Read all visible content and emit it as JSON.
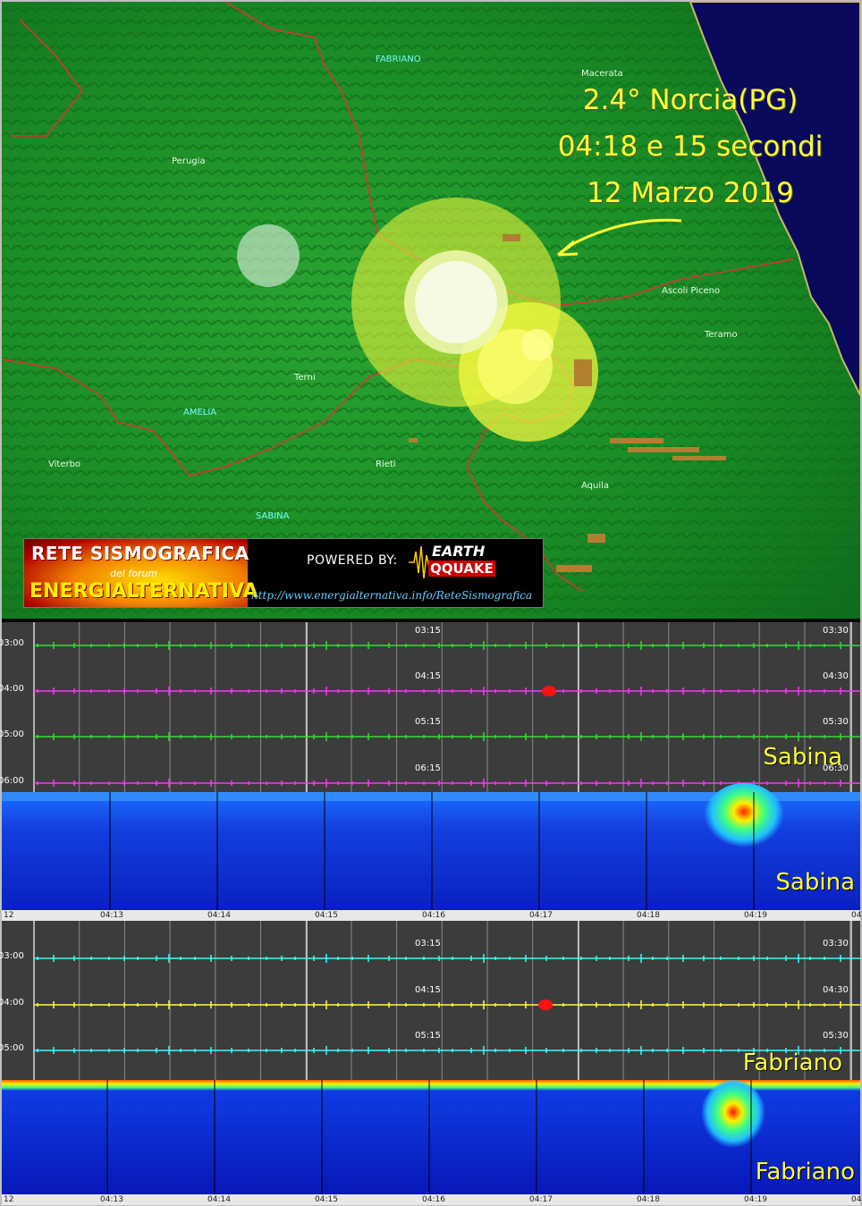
{
  "map": {
    "cities": [
      {
        "name": "FABRIANO",
        "style": "cyan"
      },
      {
        "name": "Macerata",
        "style": "white"
      },
      {
        "name": "Perugia",
        "style": "white"
      },
      {
        "name": "Ascoli Piceno",
        "style": "white"
      },
      {
        "name": "Teramo",
        "style": "white"
      },
      {
        "name": "Terni",
        "style": "white"
      },
      {
        "name": "AMELIA",
        "style": "cyan"
      },
      {
        "name": "Viterbo",
        "style": "white"
      },
      {
        "name": "Rieti",
        "style": "white"
      },
      {
        "name": "Aquila",
        "style": "white"
      },
      {
        "name": "SABINA",
        "style": "cyan"
      }
    ],
    "caption": {
      "magnitude_location": "2.4° Norcia(PG)",
      "time": "04:18 e 15 secondi",
      "date": "12 Marzo 2019"
    }
  },
  "banner": {
    "title1": "RETE SISMOGRAFICA",
    "subtitle": "del forum",
    "title2": "ENERGIALTERNATIVA",
    "powered_by": "POWERED BY:",
    "logo_line1": "EARTH",
    "logo_line2": "QQUAKE",
    "url": "http://www.energialternativa.info/ReteSismografica"
  },
  "sabina_heli": {
    "station": "Sabina",
    "row_labels": [
      "03:00",
      "04:00",
      "05:00",
      "06:00"
    ],
    "mid_labels": [
      "03:15",
      "04:15",
      "05:15",
      "06:15"
    ],
    "right_labels": [
      "03:30",
      "04:30",
      "05:30",
      "06:30"
    ],
    "trace_colors": [
      "#33dd33",
      "#ff33ff",
      "#33dd33",
      "#ff33ff"
    ]
  },
  "sabina_spec": {
    "station": "Sabina"
  },
  "axis1": {
    "ticks": [
      "12",
      "04:13",
      "04:14",
      "04:15",
      "04:16",
      "04:17",
      "04:18",
      "04:19",
      "04"
    ]
  },
  "fabriano_heli": {
    "station": "Fabriano",
    "row_labels": [
      "03:00",
      "04:00",
      "05:00"
    ],
    "mid_labels": [
      "03:15",
      "04:15",
      "05:15"
    ],
    "right_labels": [
      "03:30",
      "04:30",
      "05:30"
    ],
    "trace_colors": [
      "#33ffff",
      "#ffff33",
      "#33ffff"
    ]
  },
  "fabriano_spec": {
    "station": "Fabriano"
  },
  "axis2": {
    "ticks": [
      "12",
      "04:13",
      "04:14",
      "04:15",
      "04:16",
      "04:17",
      "04:18",
      "04:19",
      "04"
    ]
  },
  "colors": {
    "land": "#1f9a2a",
    "sea": "#08085a",
    "border": "#d03030",
    "circle_yellow": "#ffff40",
    "caption": "#ffff33",
    "heli_bg": "#3c3c3c",
    "spec_bg": "#1030d0"
  }
}
